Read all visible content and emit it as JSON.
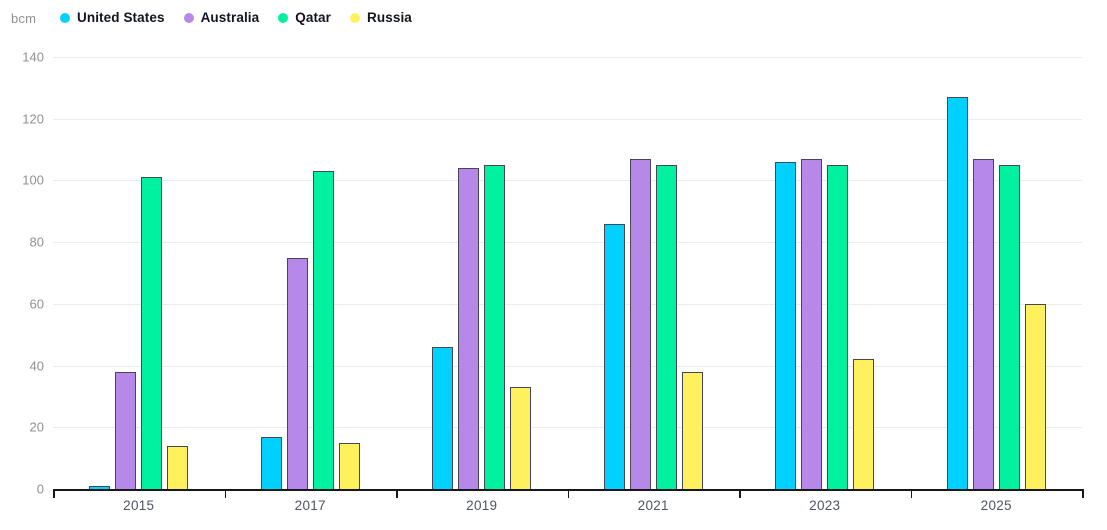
{
  "unit_label": "bcm",
  "colors": {
    "background": "#FFFFFF",
    "grid": "#EBEBEB",
    "axis_line": "#17181C",
    "bar_border": "#45465A",
    "y_tick_label": "#8E9096",
    "x_tick_label": "#4E5563",
    "legend_text": "#12141F",
    "united_states": "#00D1FF",
    "australia": "#B689E9",
    "qatar": "#00F2A0",
    "russia": "#FFF15E"
  },
  "chart_data": {
    "type": "bar",
    "title": "",
    "ylabel": "bcm",
    "xlabel": "",
    "categories": [
      "2015",
      "2017",
      "2019",
      "2021",
      "2023",
      "2025"
    ],
    "series": [
      {
        "name": "United States",
        "color": "#00D1FF",
        "values": [
          1,
          17,
          46,
          86,
          106,
          127
        ]
      },
      {
        "name": "Australia",
        "color": "#B689E9",
        "values": [
          38,
          75,
          104,
          107,
          107,
          107
        ]
      },
      {
        "name": "Qatar",
        "color": "#00F2A0",
        "values": [
          101,
          103,
          105,
          105,
          105,
          105
        ]
      },
      {
        "name": "Russia",
        "color": "#FFF15E",
        "values": [
          14,
          15,
          33,
          38,
          42,
          60
        ]
      }
    ],
    "ylim": [
      0,
      140
    ],
    "yticks": [
      0,
      20,
      40,
      60,
      80,
      100,
      120,
      140
    ],
    "grid": true,
    "legend_position": "top-left"
  }
}
